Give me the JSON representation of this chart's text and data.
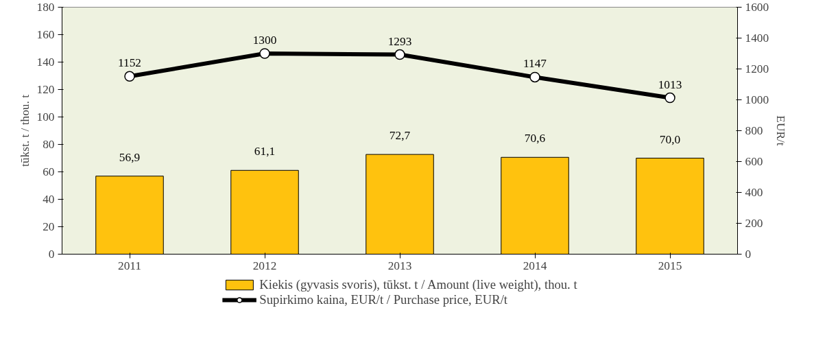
{
  "chart_data": {
    "type": "bar",
    "ylabel": "tūkst. t / thou. t",
    "y2label": "EUR/t",
    "categories": [
      "2011",
      "2012",
      "2013",
      "2014",
      "2015"
    ],
    "series": [
      {
        "name": "Kiekis (gyvasis svoris), tūkst. t / Amount (live weight), thou. t",
        "color": "#ffc20e",
        "values": [
          56.9,
          61.1,
          72.7,
          70.6,
          70.0
        ],
        "value_labels": [
          "56,9",
          "61,1",
          "72,7",
          "70,6",
          "70,0"
        ]
      },
      {
        "name": "Supirkimo kaina, EUR/t / Purchase price, EUR/t",
        "type": "line",
        "axis": "y2",
        "color": "#000000",
        "marker": "circle",
        "line_style": "solid",
        "values": [
          1152,
          1300,
          1293,
          1147,
          1013
        ],
        "value_labels": [
          "1152",
          "1300",
          "1293",
          "1147",
          "1013"
        ]
      }
    ],
    "ylim": [
      0,
      180
    ],
    "yticks": [
      0,
      20,
      40,
      60,
      80,
      100,
      120,
      140,
      160,
      180
    ],
    "y2lim": [
      0,
      1600
    ],
    "y2ticks": [
      0,
      200,
      400,
      600,
      800,
      1000,
      1200,
      1400,
      1600
    ],
    "legend": "bottom"
  }
}
